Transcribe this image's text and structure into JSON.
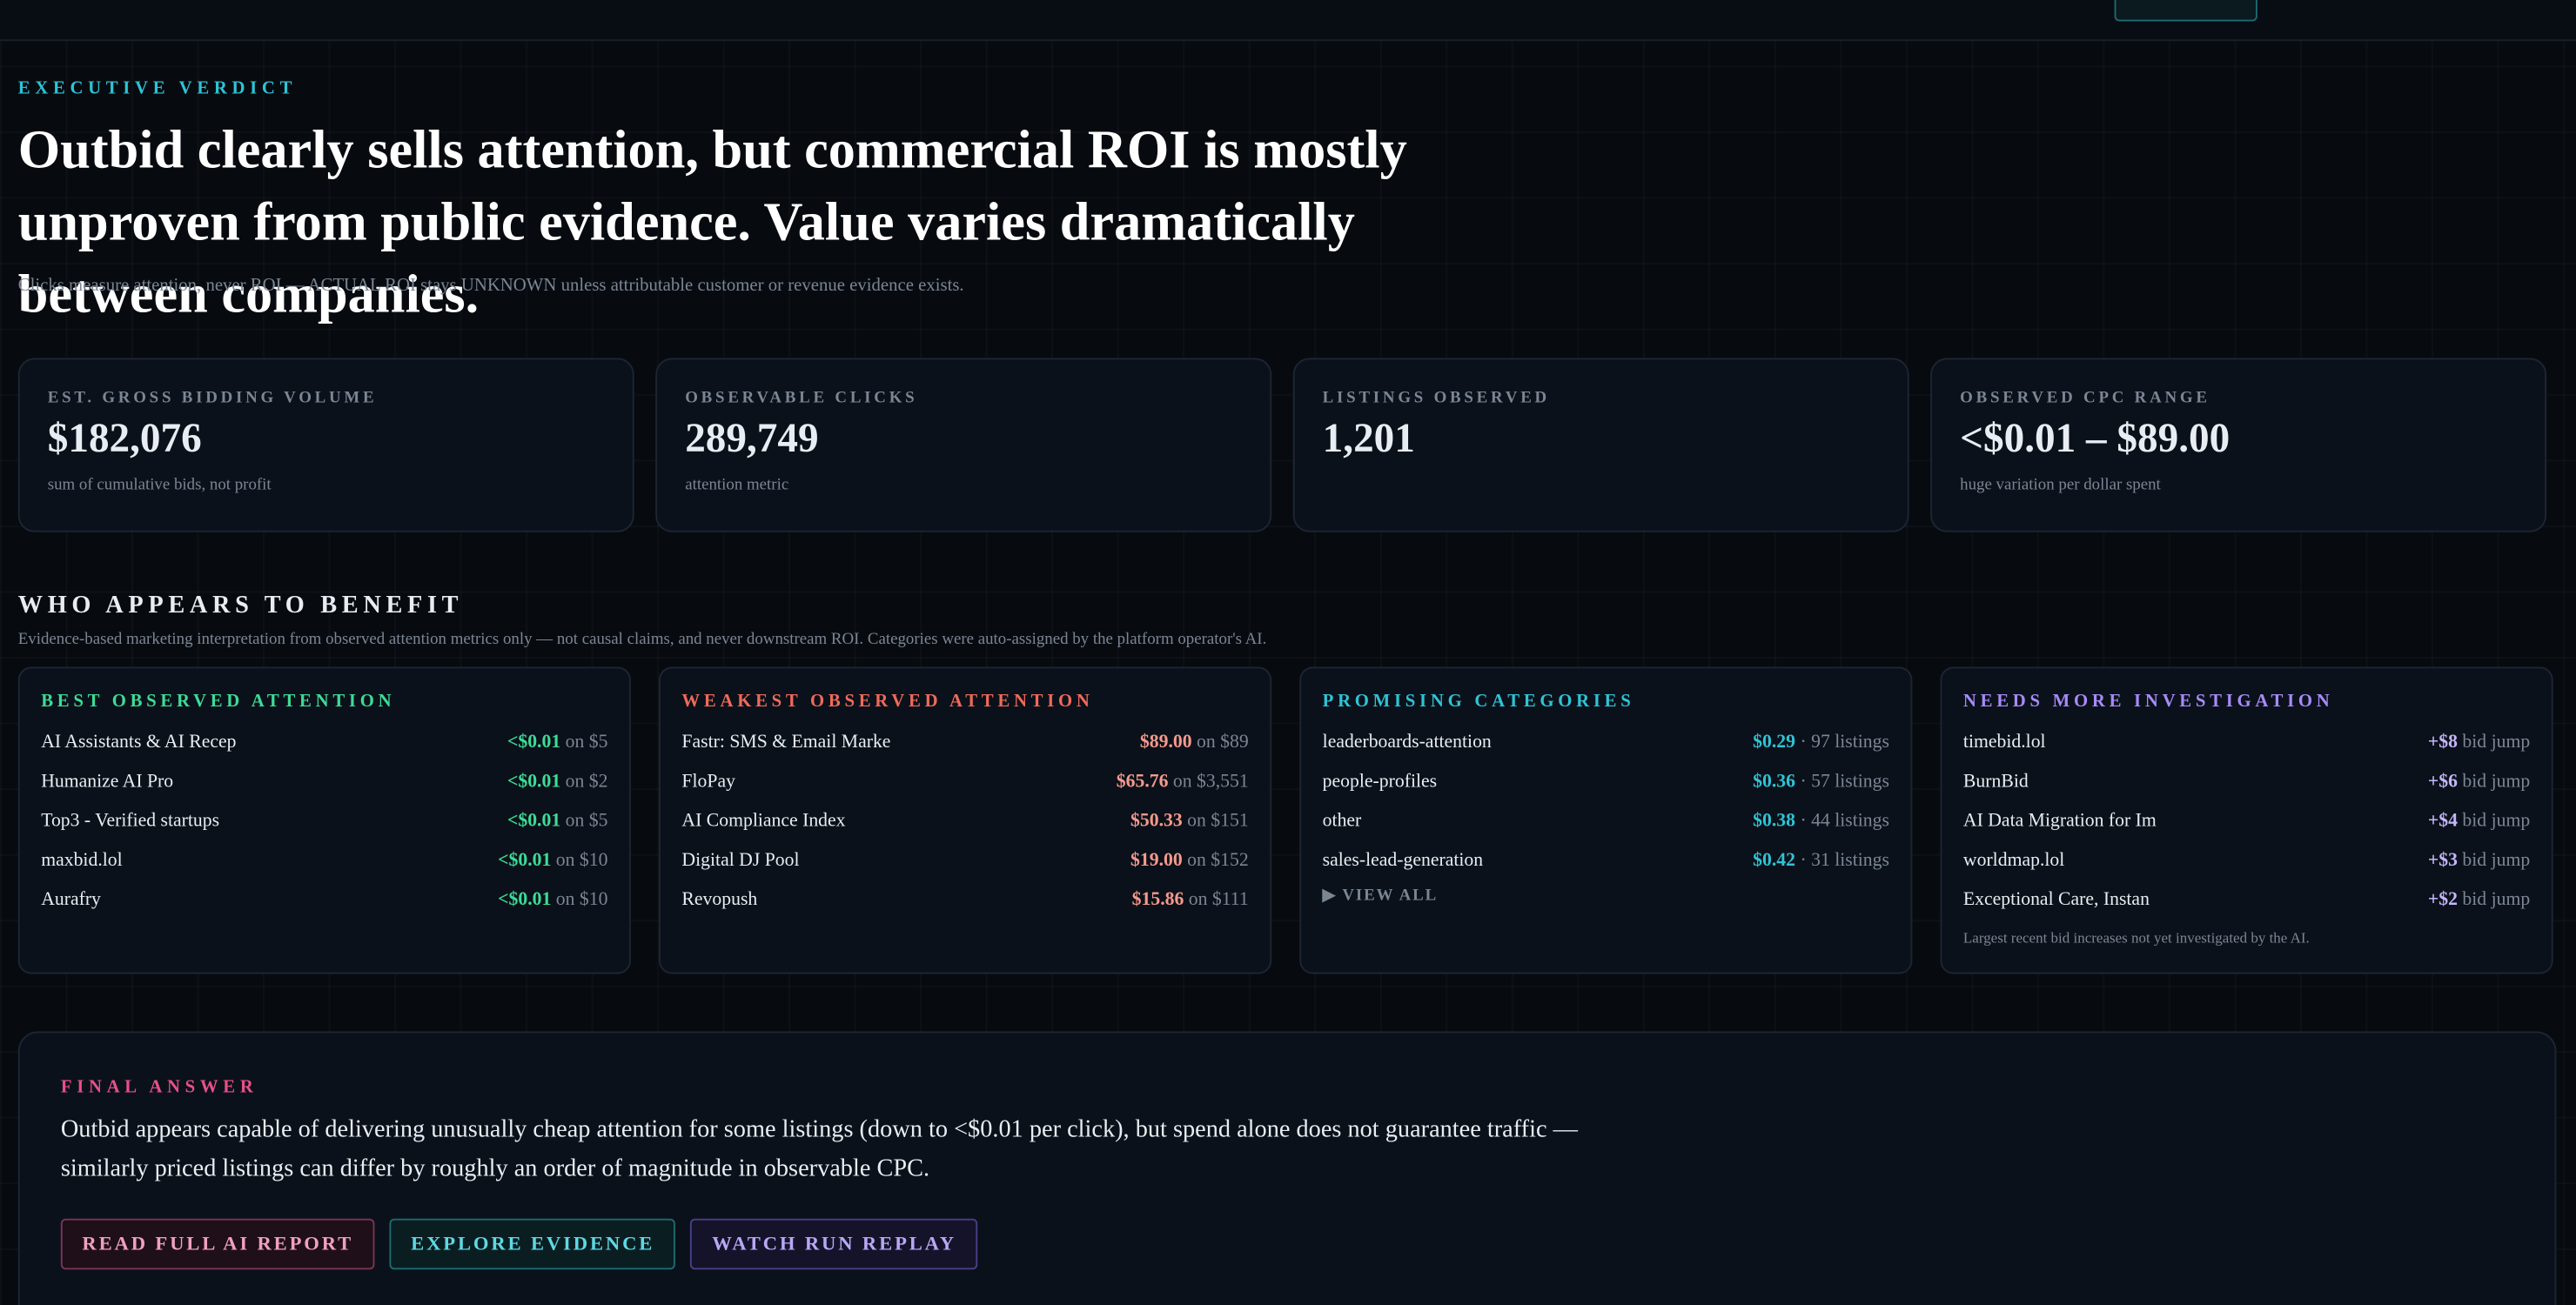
{
  "verdict": {
    "eyebrow": "EXECUTIVE VERDICT",
    "headline": "Outbid clearly sells attention, but commercial ROI is mostly unproven from public evidence. Value varies dramatically between companies.",
    "note": "Clicks measure attention, never ROI — ACTUAL ROI stays UNKNOWN unless attributable customer or revenue evidence exists."
  },
  "stats": [
    {
      "label": "EST. GROSS BIDDING VOLUME",
      "value": "$182,076",
      "note": "sum of cumulative bids, not profit"
    },
    {
      "label": "OBSERVABLE CLICKS",
      "value": "289,749",
      "note": "attention metric"
    },
    {
      "label": "LISTINGS OBSERVED",
      "value": "1,201"
    },
    {
      "label": "OBSERVED CPC RANGE",
      "value": "<$0.01 – $89.00",
      "note": "huge variation per dollar spent"
    }
  ],
  "benefit": {
    "title": "WHO APPEARS TO BENEFIT",
    "subtitle": "Evidence-based marketing interpretation from observed attention metrics only — not causal claims, and never downstream ROI. Categories were auto-assigned by the platform operator's AI.",
    "panels": [
      {
        "title": "BEST OBSERVED ATTENTION",
        "rows": [
          [
            "AI Assistants & AI Recep",
            "<$0.01",
            "on $5"
          ],
          [
            "Humanize AI Pro",
            "<$0.01",
            "on $2"
          ],
          [
            "Top3 - Verified startups",
            "<$0.01",
            "on $5"
          ],
          [
            "maxbid.lol",
            "<$0.01",
            "on $10"
          ],
          [
            "Aurafry",
            "<$0.01",
            "on $10"
          ]
        ]
      },
      {
        "title": "WEAKEST OBSERVED ATTENTION",
        "rows": [
          [
            "Fastr: SMS & Email Marke",
            "$89.00",
            "on $89"
          ],
          [
            "FloPay",
            "$65.76",
            "on $3,551"
          ],
          [
            "AI Compliance Index",
            "$50.33",
            "on $151"
          ],
          [
            "Digital DJ Pool",
            "$19.00",
            "on $152"
          ],
          [
            "Revopush",
            "$15.86",
            "on $111"
          ]
        ]
      },
      {
        "title": "PROMISING CATEGORIES",
        "rows": [
          [
            "leaderboards-attention",
            "$0.29",
            "· 97 listings"
          ],
          [
            "people-profiles",
            "$0.36",
            "· 57 listings"
          ],
          [
            "other",
            "$0.38",
            "· 44 listings"
          ],
          [
            "sales-lead-generation",
            "$0.42",
            "· 31 listings"
          ]
        ],
        "link": "VIEW ALL"
      },
      {
        "title": "NEEDS MORE INVESTIGATION",
        "rows": [
          [
            "timebid.lol",
            "+$8",
            "bid jump"
          ],
          [
            "BurnBid",
            "+$6",
            "bid jump"
          ],
          [
            "AI Data Migration for Im",
            "+$4",
            "bid jump"
          ],
          [
            "worldmap.lol",
            "+$3",
            "bid jump"
          ],
          [
            "Exceptional Care, Instan",
            "+$2",
            "bid jump"
          ]
        ],
        "footnote": "Largest recent bid increases not yet investigated by the AI."
      }
    ]
  },
  "final": {
    "label": "FINAL ANSWER",
    "text": "Outbid appears capable of delivering unusually cheap attention for some listings (down to <$0.01 per click), but spend alone does not guarantee traffic — similarly priced listings can differ by roughly an order of magnitude in observable CPC.",
    "buttons": [
      "READ FULL AI REPORT",
      "EXPLORE EVIDENCE",
      "WATCH RUN REPLAY"
    ]
  }
}
